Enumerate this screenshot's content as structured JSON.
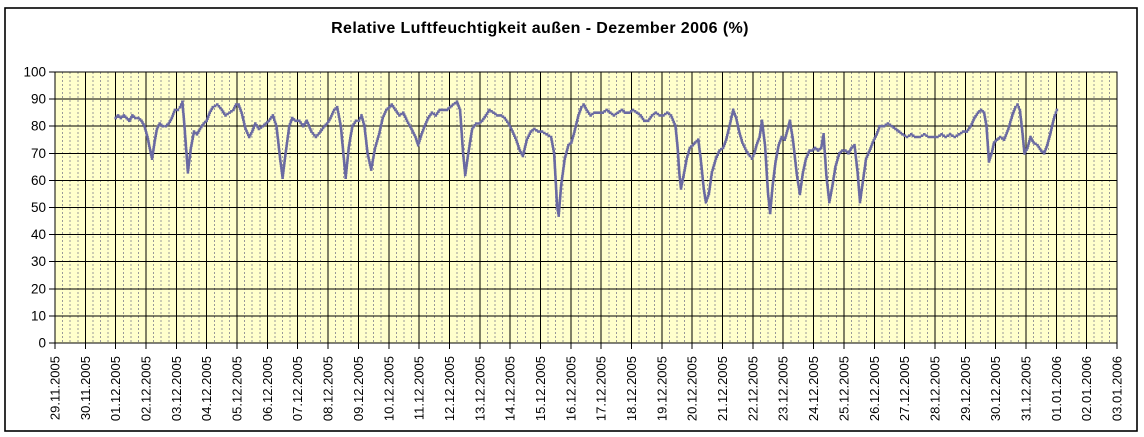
{
  "frame": {
    "background": "#FFFFFF",
    "border_color": "#000000"
  },
  "chart_data": {
    "type": "scatter",
    "title": "Relative Luftfeuchtigkeit außen - Dezember 2006 (%)",
    "xlabel": "",
    "ylabel": "",
    "ylim": [
      0,
      100
    ],
    "y_ticks": [
      0,
      10,
      20,
      30,
      40,
      50,
      60,
      70,
      80,
      90,
      100
    ],
    "x_tick_labels": [
      "29.11.2005",
      "30.11.2005",
      "01.12.2005",
      "02.12.2005",
      "03.12.2005",
      "04.12.2005",
      "05.12.2005",
      "06.12.2005",
      "07.12.2005",
      "08.12.2005",
      "09.12.2005",
      "10.12.2005",
      "11.12.2005",
      "12.12.2005",
      "13.12.2005",
      "14.12.2005",
      "15.12.2005",
      "16.12.2005",
      "17.12.2005",
      "18.12.2005",
      "19.12.2005",
      "20.12.2005",
      "21.12.2005",
      "22.12.2005",
      "23.12.2005",
      "24.12.2005",
      "25.12.2005",
      "26.12.2005",
      "27.12.2005",
      "28.12.2005",
      "29.12.2005",
      "30.12.2005",
      "31.12.2005",
      "01.01.2006",
      "02.01.2006",
      "03.01.2006"
    ],
    "legend": "none",
    "grid": {
      "horizontal_major": "solid black every 10",
      "vertical_major": "solid black every day",
      "vertical_minor": "dashed gray, 4 per day (6h)"
    },
    "colors": {
      "plot_bg": "#FFFFCC",
      "major_grid": "#000000",
      "minor_grid": "#999999",
      "series": "#6A6AA2",
      "text": "#000000"
    },
    "x_unit": "days since first tick (29.11.2005); data runs 01.12.2005 to 01.01.2006",
    "series": [
      {
        "marker": "small-square",
        "color": "#6A6AA2",
        "points": [
          [
            2.0,
            83
          ],
          [
            2.08,
            84
          ],
          [
            2.17,
            83
          ],
          [
            2.27,
            84
          ],
          [
            2.36,
            83
          ],
          [
            2.45,
            82
          ],
          [
            2.55,
            84
          ],
          [
            2.65,
            83
          ],
          [
            2.75,
            83
          ],
          [
            2.85,
            82
          ],
          [
            2.95,
            80
          ],
          [
            3.05,
            76
          ],
          [
            3.12,
            72
          ],
          [
            3.2,
            68
          ],
          [
            3.28,
            74
          ],
          [
            3.36,
            79
          ],
          [
            3.45,
            81
          ],
          [
            3.55,
            80
          ],
          [
            3.65,
            80
          ],
          [
            3.75,
            81
          ],
          [
            3.85,
            83
          ],
          [
            3.95,
            86
          ],
          [
            4.05,
            86
          ],
          [
            4.12,
            87
          ],
          [
            4.2,
            89
          ],
          [
            4.28,
            78
          ],
          [
            4.38,
            63
          ],
          [
            4.48,
            72
          ],
          [
            4.58,
            78
          ],
          [
            4.68,
            77
          ],
          [
            4.78,
            79
          ],
          [
            4.9,
            81
          ],
          [
            5.0,
            82
          ],
          [
            5.1,
            85
          ],
          [
            5.2,
            87
          ],
          [
            5.35,
            88
          ],
          [
            5.5,
            86
          ],
          [
            5.62,
            84
          ],
          [
            5.75,
            85
          ],
          [
            5.88,
            86
          ],
          [
            5.97,
            88
          ],
          [
            6.05,
            88
          ],
          [
            6.15,
            85
          ],
          [
            6.28,
            79
          ],
          [
            6.4,
            76
          ],
          [
            6.5,
            78
          ],
          [
            6.6,
            81
          ],
          [
            6.72,
            79
          ],
          [
            6.85,
            80
          ],
          [
            6.95,
            81
          ],
          [
            7.05,
            82
          ],
          [
            7.18,
            84
          ],
          [
            7.3,
            80
          ],
          [
            7.42,
            68
          ],
          [
            7.5,
            61
          ],
          [
            7.6,
            70
          ],
          [
            7.72,
            80
          ],
          [
            7.82,
            83
          ],
          [
            7.93,
            82
          ],
          [
            8.05,
            82
          ],
          [
            8.18,
            80
          ],
          [
            8.3,
            82
          ],
          [
            8.45,
            78
          ],
          [
            8.6,
            76
          ],
          [
            8.75,
            78
          ],
          [
            8.88,
            80
          ],
          [
            8.97,
            81
          ],
          [
            9.08,
            83
          ],
          [
            9.2,
            86
          ],
          [
            9.3,
            87
          ],
          [
            9.42,
            80
          ],
          [
            9.52,
            68
          ],
          [
            9.58,
            61
          ],
          [
            9.68,
            72
          ],
          [
            9.8,
            80
          ],
          [
            9.92,
            82
          ],
          [
            10.02,
            82
          ],
          [
            10.1,
            84
          ],
          [
            10.2,
            80
          ],
          [
            10.3,
            70
          ],
          [
            10.42,
            64
          ],
          [
            10.55,
            72
          ],
          [
            10.68,
            77
          ],
          [
            10.8,
            83
          ],
          [
            10.92,
            86
          ],
          [
            11.02,
            87
          ],
          [
            11.1,
            88
          ],
          [
            11.22,
            86
          ],
          [
            11.35,
            84
          ],
          [
            11.48,
            85
          ],
          [
            11.6,
            82
          ],
          [
            11.75,
            79
          ],
          [
            11.88,
            76
          ],
          [
            11.97,
            73
          ],
          [
            12.08,
            77
          ],
          [
            12.18,
            80
          ],
          [
            12.3,
            83
          ],
          [
            12.42,
            85
          ],
          [
            12.55,
            84
          ],
          [
            12.68,
            86
          ],
          [
            12.8,
            86
          ],
          [
            12.92,
            86
          ],
          [
            13.02,
            87
          ],
          [
            13.12,
            88
          ],
          [
            13.25,
            89
          ],
          [
            13.35,
            86
          ],
          [
            13.45,
            70
          ],
          [
            13.52,
            62
          ],
          [
            13.62,
            70
          ],
          [
            13.75,
            79
          ],
          [
            13.88,
            81
          ],
          [
            13.97,
            81
          ],
          [
            14.08,
            82
          ],
          [
            14.2,
            84
          ],
          [
            14.32,
            86
          ],
          [
            14.45,
            85
          ],
          [
            14.58,
            84
          ],
          [
            14.7,
            84
          ],
          [
            14.82,
            83
          ],
          [
            14.95,
            81
          ],
          [
            15.08,
            78
          ],
          [
            15.2,
            75
          ],
          [
            15.32,
            71
          ],
          [
            15.42,
            69
          ],
          [
            15.55,
            75
          ],
          [
            15.68,
            78
          ],
          [
            15.8,
            79
          ],
          [
            15.93,
            78
          ],
          [
            16.05,
            78
          ],
          [
            16.2,
            77
          ],
          [
            16.35,
            76
          ],
          [
            16.45,
            70
          ],
          [
            16.55,
            50
          ],
          [
            16.6,
            47
          ],
          [
            16.68,
            58
          ],
          [
            16.8,
            68
          ],
          [
            16.92,
            73
          ],
          [
            17.02,
            74
          ],
          [
            17.12,
            78
          ],
          [
            17.25,
            84
          ],
          [
            17.35,
            87
          ],
          [
            17.42,
            88
          ],
          [
            17.52,
            86
          ],
          [
            17.65,
            84
          ],
          [
            17.78,
            85
          ],
          [
            17.92,
            85
          ],
          [
            18.05,
            85
          ],
          [
            18.18,
            86
          ],
          [
            18.3,
            85
          ],
          [
            18.42,
            84
          ],
          [
            18.55,
            85
          ],
          [
            18.68,
            86
          ],
          [
            18.8,
            85
          ],
          [
            18.93,
            85
          ],
          [
            19.05,
            86
          ],
          [
            19.18,
            85
          ],
          [
            19.3,
            84
          ],
          [
            19.42,
            82
          ],
          [
            19.55,
            82
          ],
          [
            19.68,
            84
          ],
          [
            19.8,
            85
          ],
          [
            19.93,
            84
          ],
          [
            20.05,
            84
          ],
          [
            20.18,
            85
          ],
          [
            20.3,
            84
          ],
          [
            20.45,
            80
          ],
          [
            20.52,
            72
          ],
          [
            20.58,
            62
          ],
          [
            20.63,
            57
          ],
          [
            20.72,
            62
          ],
          [
            20.82,
            68
          ],
          [
            20.92,
            72
          ],
          [
            21.02,
            73
          ],
          [
            21.1,
            74
          ],
          [
            21.2,
            75
          ],
          [
            21.28,
            68
          ],
          [
            21.38,
            57
          ],
          [
            21.45,
            52
          ],
          [
            21.55,
            55
          ],
          [
            21.65,
            63
          ],
          [
            21.78,
            68
          ],
          [
            21.9,
            71
          ],
          [
            22.02,
            72
          ],
          [
            22.12,
            75
          ],
          [
            22.25,
            81
          ],
          [
            22.35,
            86
          ],
          [
            22.45,
            83
          ],
          [
            22.55,
            78
          ],
          [
            22.65,
            74
          ],
          [
            22.78,
            71
          ],
          [
            22.9,
            69
          ],
          [
            22.97,
            68
          ],
          [
            23.05,
            70
          ],
          [
            23.12,
            73
          ],
          [
            23.22,
            76
          ],
          [
            23.3,
            82
          ],
          [
            23.4,
            73
          ],
          [
            23.5,
            55
          ],
          [
            23.57,
            48
          ],
          [
            23.65,
            58
          ],
          [
            23.75,
            67
          ],
          [
            23.85,
            73
          ],
          [
            23.95,
            76
          ],
          [
            24.05,
            75
          ],
          [
            24.15,
            79
          ],
          [
            24.22,
            82
          ],
          [
            24.32,
            75
          ],
          [
            24.45,
            62
          ],
          [
            24.55,
            55
          ],
          [
            24.65,
            63
          ],
          [
            24.75,
            68
          ],
          [
            24.87,
            71
          ],
          [
            24.95,
            71
          ],
          [
            25.05,
            72
          ],
          [
            25.15,
            71
          ],
          [
            25.25,
            72
          ],
          [
            25.33,
            77
          ],
          [
            25.42,
            62
          ],
          [
            25.52,
            52
          ],
          [
            25.62,
            58
          ],
          [
            25.72,
            65
          ],
          [
            25.85,
            70
          ],
          [
            25.95,
            71
          ],
          [
            26.05,
            71
          ],
          [
            26.15,
            70
          ],
          [
            26.25,
            72
          ],
          [
            26.35,
            73
          ],
          [
            26.45,
            63
          ],
          [
            26.53,
            52
          ],
          [
            26.63,
            60
          ],
          [
            26.73,
            68
          ],
          [
            26.85,
            71
          ],
          [
            26.95,
            74
          ],
          [
            27.08,
            77
          ],
          [
            27.18,
            80
          ],
          [
            27.32,
            80
          ],
          [
            27.45,
            81
          ],
          [
            27.58,
            80
          ],
          [
            27.7,
            79
          ],
          [
            27.82,
            78
          ],
          [
            27.93,
            77
          ],
          [
            28.08,
            76
          ],
          [
            28.22,
            77
          ],
          [
            28.35,
            76
          ],
          [
            28.5,
            76
          ],
          [
            28.65,
            77
          ],
          [
            28.8,
            76
          ],
          [
            28.93,
            76
          ],
          [
            29.08,
            76
          ],
          [
            29.22,
            77
          ],
          [
            29.35,
            76
          ],
          [
            29.5,
            77
          ],
          [
            29.65,
            76
          ],
          [
            29.8,
            77
          ],
          [
            29.93,
            78
          ],
          [
            30.05,
            78
          ],
          [
            30.18,
            80
          ],
          [
            30.3,
            83
          ],
          [
            30.42,
            85
          ],
          [
            30.52,
            86
          ],
          [
            30.62,
            85
          ],
          [
            30.7,
            80
          ],
          [
            30.78,
            67
          ],
          [
            30.87,
            70
          ],
          [
            30.95,
            74
          ],
          [
            31.05,
            75
          ],
          [
            31.15,
            76
          ],
          [
            31.28,
            75
          ],
          [
            31.42,
            79
          ],
          [
            31.55,
            84
          ],
          [
            31.65,
            87
          ],
          [
            31.72,
            88
          ],
          [
            31.8,
            86
          ],
          [
            31.88,
            78
          ],
          [
            31.95,
            70
          ],
          [
            32.05,
            72
          ],
          [
            32.15,
            76
          ],
          [
            32.25,
            74
          ],
          [
            32.38,
            73
          ],
          [
            32.5,
            71
          ],
          [
            32.6,
            70
          ],
          [
            32.7,
            73
          ],
          [
            32.8,
            77
          ],
          [
            32.88,
            81
          ],
          [
            32.95,
            84
          ],
          [
            33.02,
            86
          ]
        ]
      }
    ]
  }
}
